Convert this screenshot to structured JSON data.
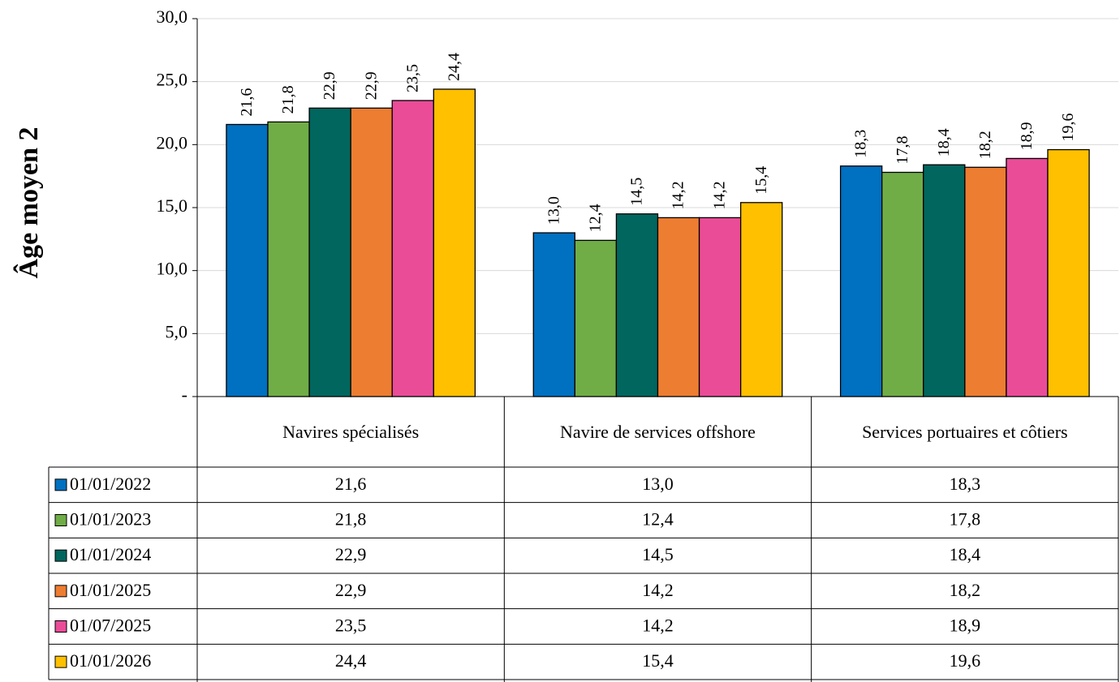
{
  "chart_data": {
    "type": "bar",
    "y_label": "Âge moyen 2",
    "categories": [
      "Navires spécialisés",
      "Navire de services offshore",
      "Services portuaires et côtiers"
    ],
    "series": [
      {
        "name": "01/01/2022",
        "color": "#0070c0",
        "values": [
          21.6,
          13.0,
          18.3
        ],
        "value_labels": [
          "21,6",
          "13,0",
          "18,3"
        ]
      },
      {
        "name": "01/01/2023",
        "color": "#70ad47",
        "values": [
          21.8,
          12.4,
          17.8
        ],
        "value_labels": [
          "21,8",
          "12,4",
          "17,8"
        ]
      },
      {
        "name": "01/01/2024",
        "color": "#00665e",
        "values": [
          22.9,
          14.5,
          18.4
        ],
        "value_labels": [
          "22,9",
          "14,5",
          "18,4"
        ]
      },
      {
        "name": "01/01/2025",
        "color": "#ed7d31",
        "values": [
          22.9,
          14.2,
          18.2
        ],
        "value_labels": [
          "22,9",
          "14,2",
          "18,2"
        ]
      },
      {
        "name": "01/07/2025",
        "color": "#ea4c98",
        "values": [
          23.5,
          14.2,
          18.9
        ],
        "value_labels": [
          "23,5",
          "14,2",
          "18,9"
        ]
      },
      {
        "name": "01/01/2026",
        "color": "#ffc000",
        "values": [
          24.4,
          15.4,
          19.6
        ],
        "value_labels": [
          "24,4",
          "15,4",
          "19,6"
        ]
      }
    ],
    "ylim": [
      0,
      30
    ],
    "yticks": [
      {
        "value": 0,
        "label": "-"
      },
      {
        "value": 5,
        "label": "5,0"
      },
      {
        "value": 10,
        "label": "10,0"
      },
      {
        "value": 15,
        "label": "15,0"
      },
      {
        "value": 20,
        "label": "20,0"
      },
      {
        "value": 25,
        "label": "25,0"
      },
      {
        "value": 30,
        "label": "30,0"
      }
    ],
    "grid": true
  }
}
